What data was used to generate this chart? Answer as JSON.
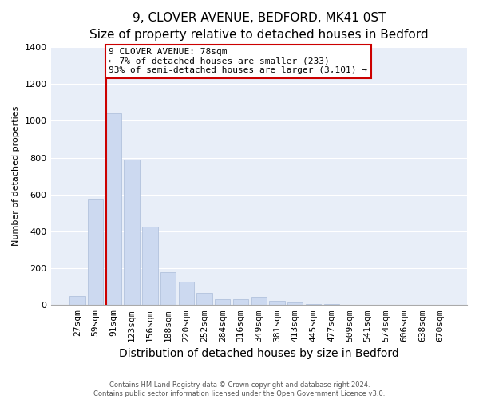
{
  "title": "9, CLOVER AVENUE, BEDFORD, MK41 0ST",
  "subtitle": "Size of property relative to detached houses in Bedford",
  "xlabel": "Distribution of detached houses by size in Bedford",
  "ylabel": "Number of detached properties",
  "bar_labels": [
    "27sqm",
    "59sqm",
    "91sqm",
    "123sqm",
    "156sqm",
    "188sqm",
    "220sqm",
    "252sqm",
    "284sqm",
    "316sqm",
    "349sqm",
    "381sqm",
    "413sqm",
    "445sqm",
    "477sqm",
    "509sqm",
    "541sqm",
    "574sqm",
    "606sqm",
    "638sqm",
    "670sqm"
  ],
  "bar_values": [
    50,
    575,
    1040,
    790,
    425,
    180,
    125,
    65,
    30,
    30,
    45,
    25,
    15,
    5,
    5,
    0,
    0,
    0,
    0,
    0,
    0
  ],
  "bar_color": "#ccd9f0",
  "bar_edge_color": "#aabbd8",
  "red_line_bar_index": 2,
  "annotation_box_text": "9 CLOVER AVENUE: 78sqm\n← 7% of detached houses are smaller (233)\n93% of semi-detached houses are larger (3,101) →",
  "annotation_box_color": "#ffffff",
  "annotation_box_edge_color": "#cc0000",
  "annotation_line_color": "#cc0000",
  "ylim": [
    0,
    1400
  ],
  "yticks": [
    0,
    200,
    400,
    600,
    800,
    1000,
    1200,
    1400
  ],
  "footer_line1": "Contains HM Land Registry data © Crown copyright and database right 2024.",
  "footer_line2": "Contains public sector information licensed under the Open Government Licence v3.0.",
  "background_color": "#ffffff",
  "plot_background_color": "#e8eef8",
  "grid_color": "#ffffff",
  "title_fontsize": 11,
  "subtitle_fontsize": 10,
  "ylabel_fontsize": 8,
  "xlabel_fontsize": 10,
  "tick_fontsize": 8,
  "footer_fontsize": 6
}
